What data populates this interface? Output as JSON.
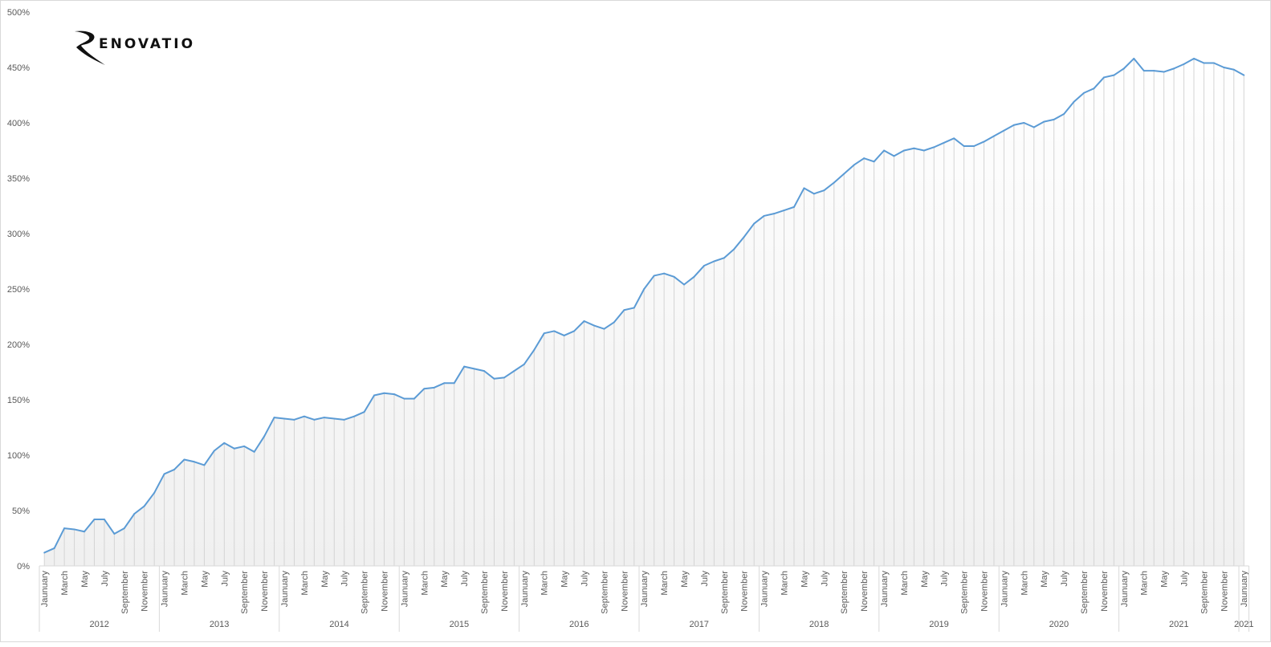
{
  "logo": {
    "text": "RENOVATIO"
  },
  "chart_data": {
    "type": "line",
    "title": "",
    "xlabel": "",
    "ylabel": "",
    "ylim": [
      0,
      500
    ],
    "y_ticks": [
      "0%",
      "50%",
      "100%",
      "150%",
      "200%",
      "250%",
      "300%",
      "350%",
      "400%",
      "450%",
      "500%"
    ],
    "y_tick_values": [
      0,
      50,
      100,
      150,
      200,
      250,
      300,
      350,
      400,
      450,
      500
    ],
    "x_month_labels": [
      "Jaunuary",
      "March",
      "May",
      "July",
      "September",
      "November"
    ],
    "x_year_labels": [
      "2012",
      "2013",
      "2014",
      "2015",
      "2016",
      "2017",
      "2018",
      "2019",
      "2020",
      "2021",
      "2021"
    ],
    "grid": false,
    "drop_lines": true,
    "line_color": "#5b9bd5",
    "values": [
      12,
      16,
      34,
      33,
      31,
      42,
      42,
      29,
      34,
      47,
      54,
      66,
      83,
      87,
      96,
      94,
      91,
      104,
      111,
      106,
      108,
      103,
      117,
      134,
      133,
      132,
      135,
      132,
      134,
      133,
      132,
      135,
      139,
      154,
      156,
      155,
      151,
      151,
      160,
      161,
      165,
      165,
      180,
      178,
      176,
      169,
      170,
      176,
      182,
      195,
      210,
      212,
      208,
      212,
      221,
      217,
      214,
      220,
      231,
      233,
      250,
      262,
      264,
      261,
      254,
      261,
      271,
      275,
      278,
      286,
      297,
      309,
      316,
      318,
      321,
      324,
      341,
      336,
      339,
      346,
      354,
      362,
      368,
      365,
      375,
      370,
      375,
      377,
      375,
      378,
      382,
      386,
      379,
      379,
      383,
      388,
      393,
      398,
      400,
      396,
      401,
      403,
      408,
      419,
      427,
      431,
      441,
      443,
      449,
      458,
      447,
      447,
      446,
      449,
      453,
      458,
      454,
      454,
      450,
      448,
      443
    ]
  }
}
